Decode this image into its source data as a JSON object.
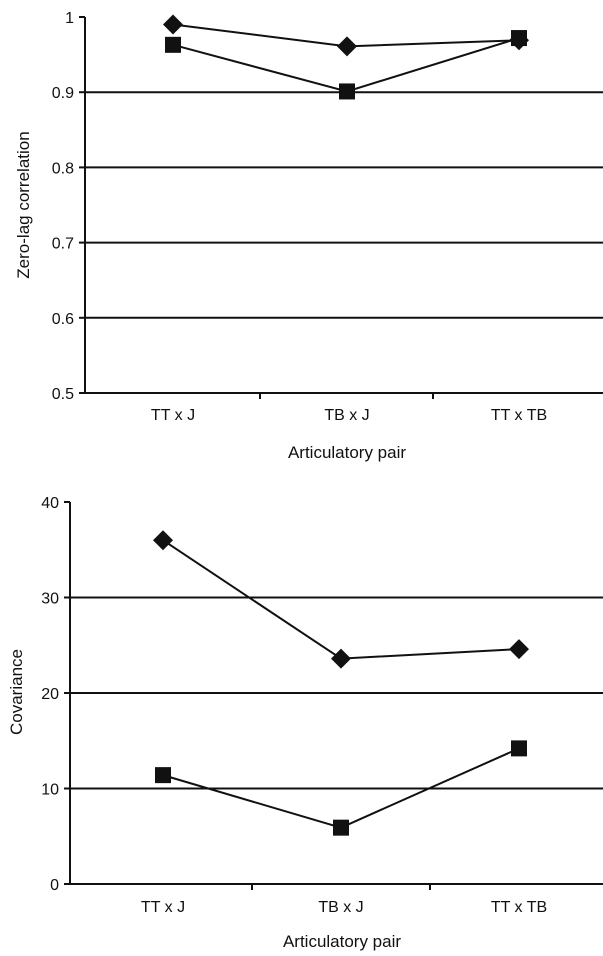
{
  "chart_data": [
    {
      "type": "line",
      "categories": [
        "TT x J",
        "TB x J",
        "TT x TB"
      ],
      "series": [
        {
          "marker": "diamond",
          "values": [
            0.99,
            0.961,
            0.969
          ]
        },
        {
          "marker": "square",
          "values": [
            0.963,
            0.901,
            0.972
          ]
        }
      ],
      "xlabel": "Articulatory pair",
      "ylabel": "Zero-lag correlation",
      "ylim": [
        0.5,
        1
      ],
      "yticks": [
        0.5,
        0.6,
        0.7,
        0.8,
        0.9,
        1
      ],
      "ytick_labels": [
        "0.5",
        "0.6",
        "0.7",
        "0.8",
        "0.9",
        "1"
      ],
      "grid": true,
      "legend": "none",
      "line_color": "#111111"
    },
    {
      "type": "line",
      "categories": [
        "TT x J",
        "TB x J",
        "TT x TB"
      ],
      "series": [
        {
          "marker": "diamond",
          "values": [
            36,
            23.6,
            24.6
          ]
        },
        {
          "marker": "square",
          "values": [
            11.4,
            5.9,
            14.2
          ]
        }
      ],
      "xlabel": "Articulatory pair",
      "ylabel": "Covariance",
      "ylim": [
        0,
        40
      ],
      "yticks": [
        0,
        10,
        20,
        30,
        40
      ],
      "ytick_labels": [
        "0",
        "10",
        "20",
        "30",
        "40"
      ],
      "grid": true,
      "legend": "none",
      "line_color": "#111111"
    }
  ]
}
